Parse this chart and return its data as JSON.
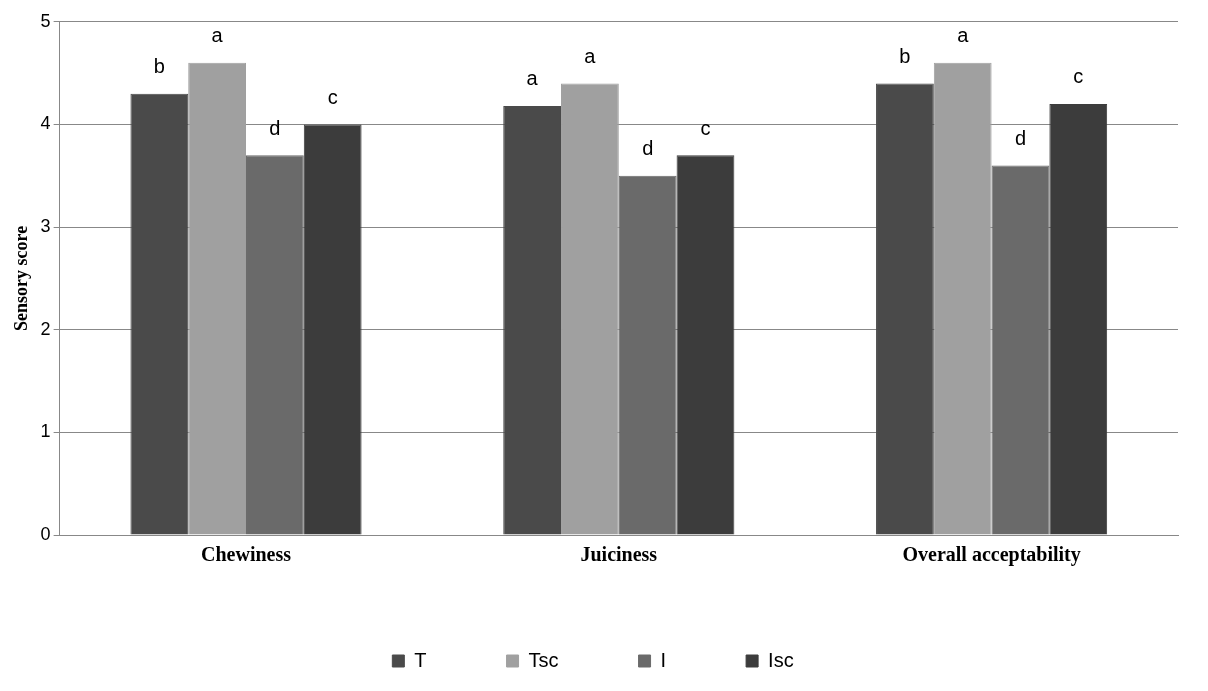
{
  "chart_data": {
    "type": "bar",
    "ylabel": "Sensory score",
    "categories": [
      "Chewiness",
      "Juiciness",
      "Overall acceptability"
    ],
    "series": [
      {
        "name": "T",
        "color": "#4a4a4a",
        "values": [
          4.3,
          4.18,
          4.4
        ],
        "value_labels": [
          "b",
          "a",
          "b"
        ]
      },
      {
        "name": "Tsc",
        "color": "#a0a0a0",
        "values": [
          4.6,
          4.4,
          4.6
        ],
        "value_labels": [
          "a",
          "a",
          "a"
        ]
      },
      {
        "name": "I",
        "color": "#6a6a6a",
        "values": [
          3.7,
          3.5,
          3.6
        ],
        "value_labels": [
          "d",
          "d",
          "d"
        ]
      },
      {
        "name": "Isc",
        "color": "#3c3c3c",
        "values": [
          4.0,
          3.7,
          4.2
        ],
        "value_labels": [
          "c",
          "c",
          "c"
        ]
      }
    ],
    "ylim": [
      0,
      5
    ],
    "yticks": [
      0,
      1,
      2,
      3,
      4,
      5
    ],
    "grid": "y",
    "legend": "bottom"
  }
}
